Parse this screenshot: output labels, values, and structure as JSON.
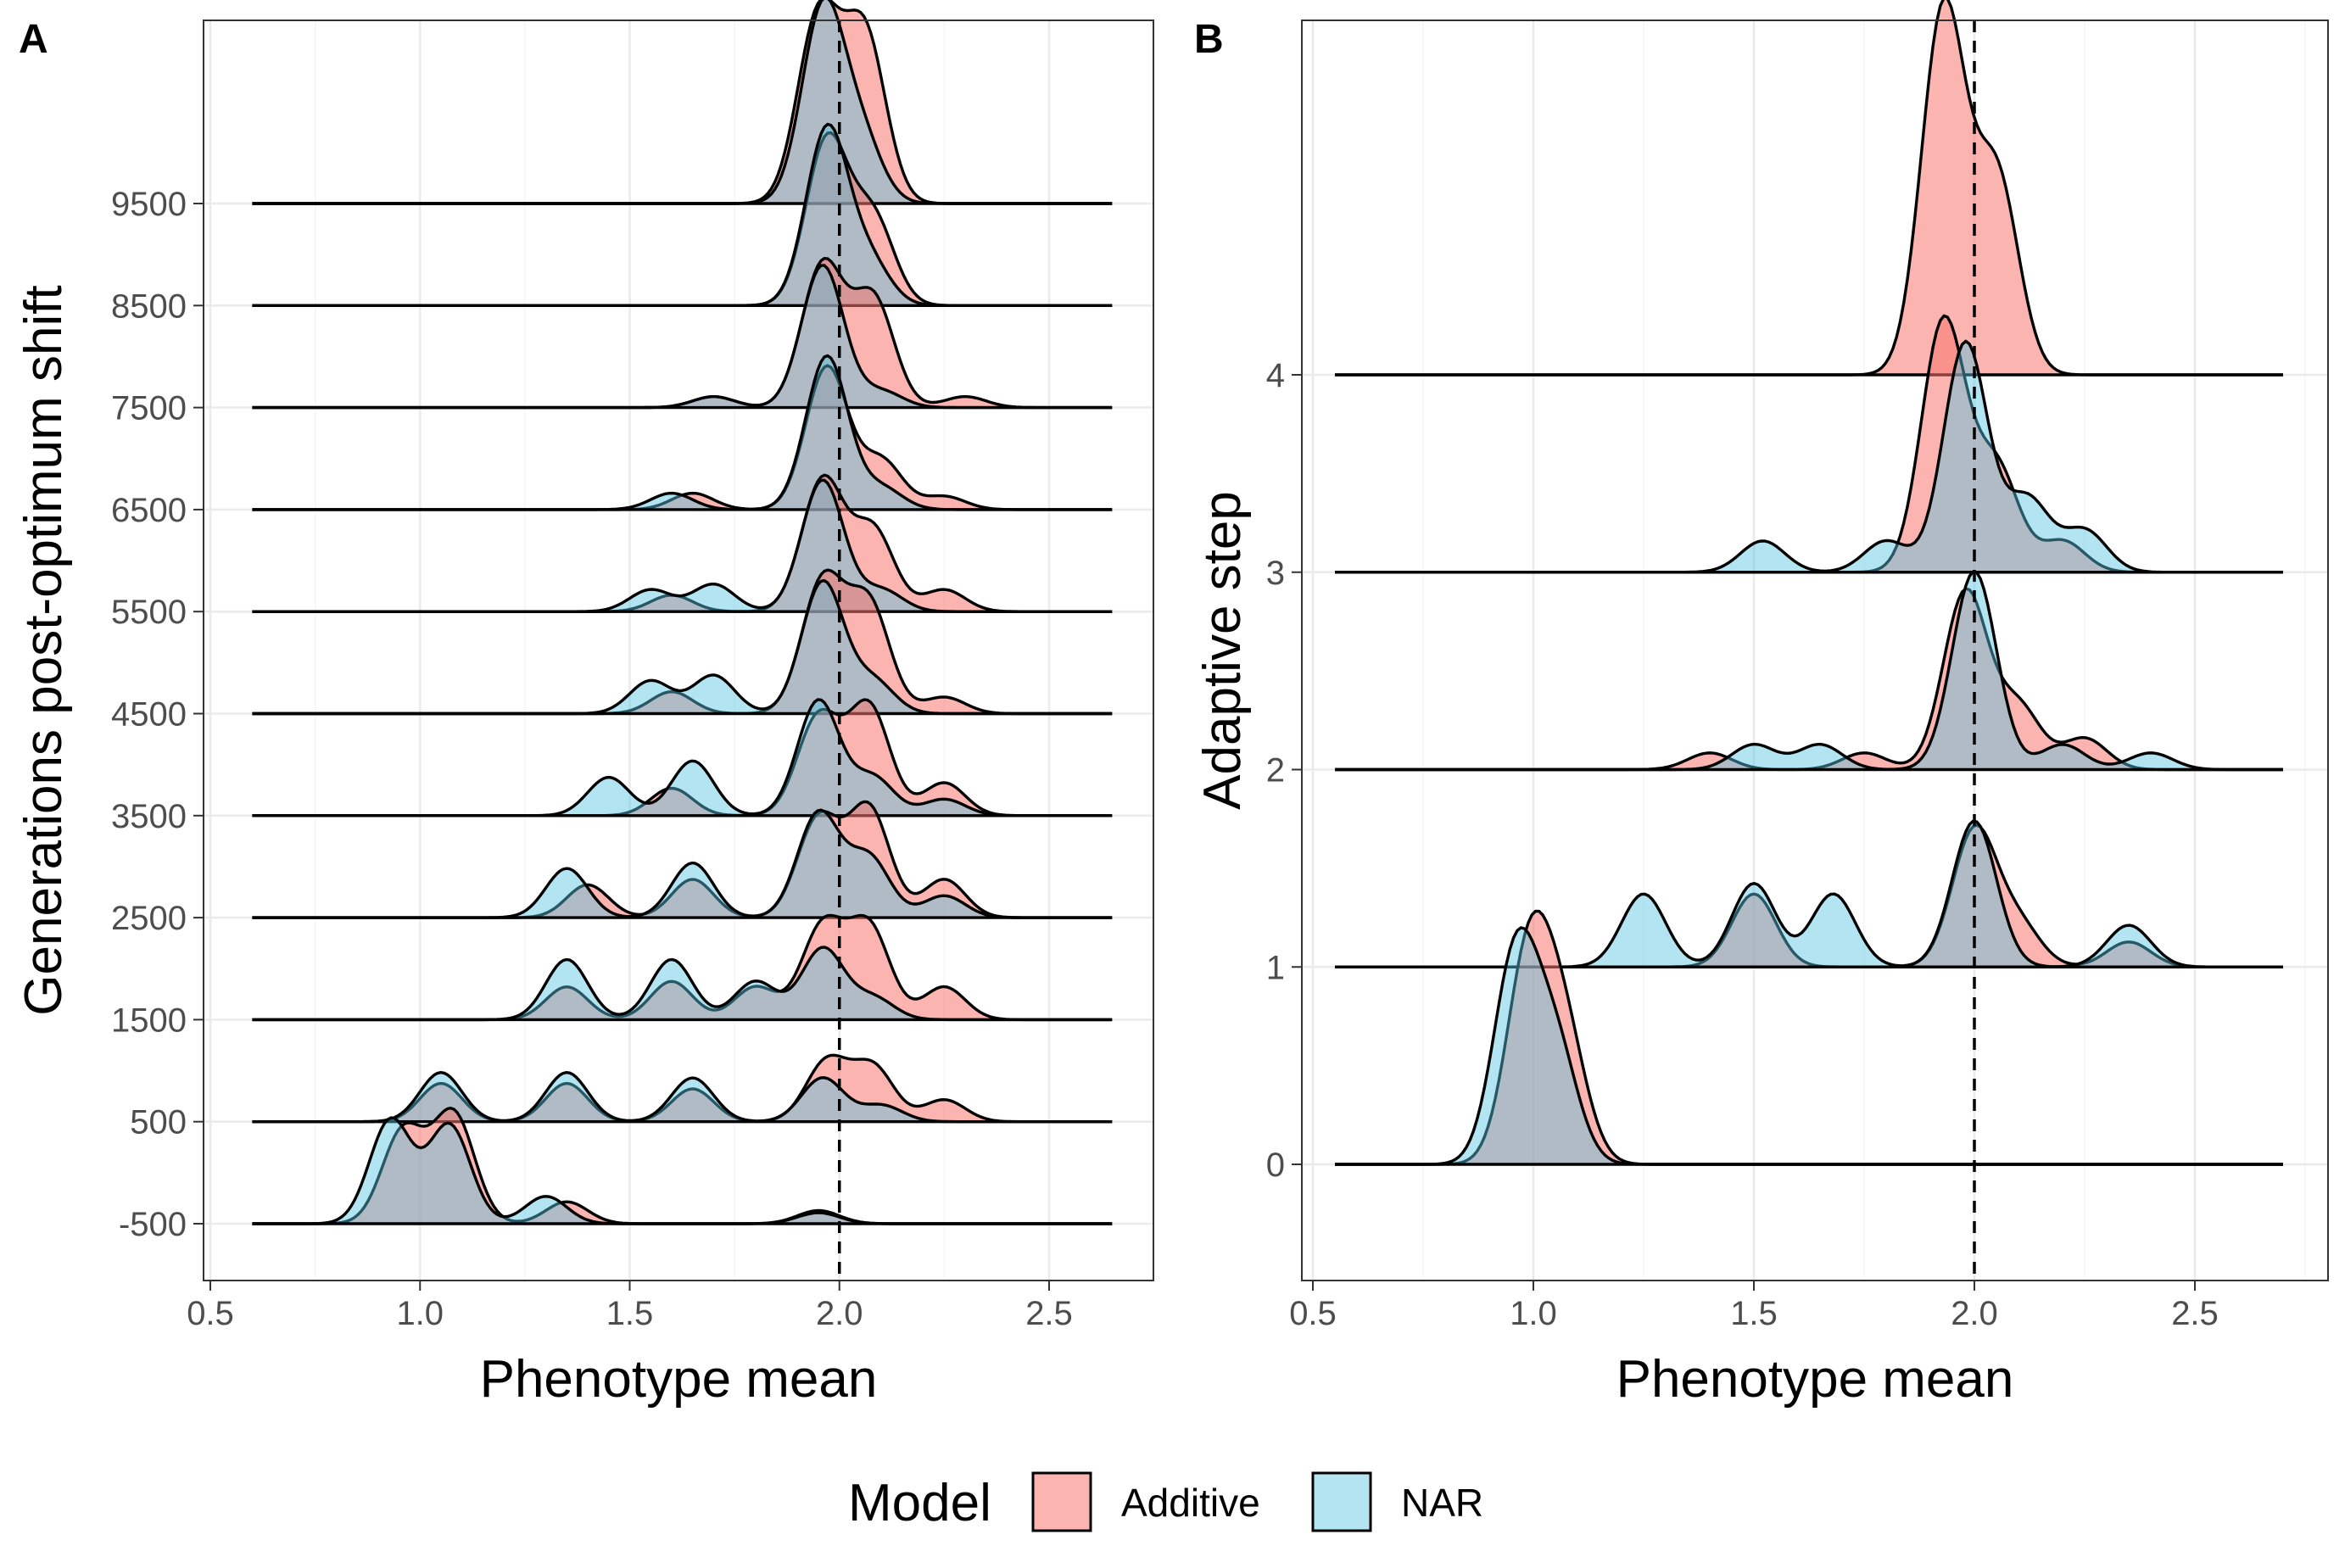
{
  "colors": {
    "additive": "#F8766D",
    "nar": "#56C4E0",
    "overlap": "#A9AFB2"
  },
  "legend": {
    "title": "Model",
    "items": [
      {
        "label": "Additive",
        "color_key": "additive"
      },
      {
        "label": "NAR",
        "color_key": "nar"
      }
    ]
  },
  "chart_data": [
    {
      "panel": "A",
      "type": "area",
      "subtype": "ridgeline-density",
      "xlabel": "Phenotype mean",
      "ylabel": "Generations post-optimum shift",
      "xlim": [
        0.5,
        2.75
      ],
      "x_ticks": [
        "0.5",
        "1.0",
        "1.5",
        "2.0",
        "2.5"
      ],
      "categories": [
        "-500",
        "500",
        "1500",
        "2500",
        "3500",
        "4500",
        "5500",
        "6500",
        "7500",
        "8500",
        "9500"
      ],
      "reference_line_x": 2.0,
      "grid": true,
      "series": [
        {
          "name": "Additive",
          "ridges": [
            {
              "category": "-500",
              "peaks": [
                [
                  1.08,
                  1.0
                ],
                [
                  0.96,
                  0.85
                ],
                [
                  1.35,
                  0.2
                ],
                [
                  1.95,
                  0.12
                ]
              ]
            },
            {
              "category": "500",
              "peaks": [
                [
                  1.05,
                  0.35
                ],
                [
                  1.35,
                  0.35
                ],
                [
                  1.65,
                  0.3
                ],
                [
                  1.97,
                  0.55
                ],
                [
                  2.08,
                  0.5
                ],
                [
                  2.25,
                  0.2
                ]
              ]
            },
            {
              "category": "1500",
              "peaks": [
                [
                  1.35,
                  0.3
                ],
                [
                  1.6,
                  0.35
                ],
                [
                  1.8,
                  0.3
                ],
                [
                  1.96,
                  0.85
                ],
                [
                  2.07,
                  0.85
                ],
                [
                  2.25,
                  0.3
                ]
              ]
            },
            {
              "category": "2500",
              "peaks": [
                [
                  1.4,
                  0.3
                ],
                [
                  1.65,
                  0.35
                ],
                [
                  1.95,
                  0.9
                ],
                [
                  2.07,
                  1.0
                ],
                [
                  2.25,
                  0.35
                ]
              ]
            },
            {
              "category": "3500",
              "peaks": [
                [
                  1.6,
                  0.25
                ],
                [
                  1.95,
                  0.9
                ],
                [
                  2.07,
                  1.0
                ],
                [
                  2.25,
                  0.3
                ]
              ]
            },
            {
              "category": "4500",
              "peaks": [
                [
                  1.6,
                  0.2
                ],
                [
                  1.96,
                  1.2
                ],
                [
                  2.07,
                  1.0
                ],
                [
                  2.25,
                  0.15
                ]
              ]
            },
            {
              "category": "5500",
              "peaks": [
                [
                  1.6,
                  0.15
                ],
                [
                  1.96,
                  1.2
                ],
                [
                  2.08,
                  0.75
                ],
                [
                  2.25,
                  0.2
                ]
              ]
            },
            {
              "category": "6500",
              "peaks": [
                [
                  1.65,
                  0.15
                ],
                [
                  1.97,
                  1.3
                ],
                [
                  2.1,
                  0.45
                ],
                [
                  2.25,
                  0.12
                ]
              ]
            },
            {
              "category": "7500",
              "peaks": [
                [
                  1.7,
                  0.1
                ],
                [
                  1.96,
                  1.3
                ],
                [
                  2.08,
                  1.0
                ],
                [
                  2.3,
                  0.1
                ]
              ]
            },
            {
              "category": "8500",
              "peaks": [
                [
                  1.97,
                  1.5
                ],
                [
                  2.08,
                  0.8
                ]
              ]
            },
            {
              "category": "9500",
              "peaks": [
                [
                  1.95,
                  1.7
                ],
                [
                  2.06,
                  1.55
                ]
              ]
            }
          ]
        },
        {
          "name": "NAR",
          "ridges": [
            {
              "category": "-500",
              "peaks": [
                [
                  0.93,
                  0.95
                ],
                [
                  1.07,
                  0.9
                ],
                [
                  1.3,
                  0.25
                ],
                [
                  1.95,
                  0.1
                ]
              ]
            },
            {
              "category": "500",
              "peaks": [
                [
                  1.05,
                  0.45
                ],
                [
                  1.35,
                  0.45
                ],
                [
                  1.65,
                  0.4
                ],
                [
                  1.96,
                  0.4
                ],
                [
                  2.1,
                  0.15
                ]
              ]
            },
            {
              "category": "1500",
              "peaks": [
                [
                  1.35,
                  0.55
                ],
                [
                  1.6,
                  0.55
                ],
                [
                  1.8,
                  0.35
                ],
                [
                  1.96,
                  0.65
                ],
                [
                  2.08,
                  0.2
                ]
              ]
            },
            {
              "category": "2500",
              "peaks": [
                [
                  1.35,
                  0.45
                ],
                [
                  1.65,
                  0.5
                ],
                [
                  1.95,
                  0.95
                ],
                [
                  2.07,
                  0.55
                ],
                [
                  2.25,
                  0.2
                ]
              ]
            },
            {
              "category": "3500",
              "peaks": [
                [
                  1.45,
                  0.35
                ],
                [
                  1.65,
                  0.5
                ],
                [
                  1.95,
                  1.05
                ],
                [
                  2.08,
                  0.35
                ],
                [
                  2.25,
                  0.15
                ]
              ]
            },
            {
              "category": "4500",
              "peaks": [
                [
                  1.55,
                  0.3
                ],
                [
                  1.7,
                  0.35
                ],
                [
                  1.96,
                  1.2
                ],
                [
                  2.08,
                  0.3
                ]
              ]
            },
            {
              "category": "5500",
              "peaks": [
                [
                  1.55,
                  0.2
                ],
                [
                  1.7,
                  0.25
                ],
                [
                  1.96,
                  1.2
                ],
                [
                  2.1,
                  0.2
                ]
              ]
            },
            {
              "category": "6500",
              "peaks": [
                [
                  1.6,
                  0.15
                ],
                [
                  1.97,
                  1.4
                ],
                [
                  2.1,
                  0.2
                ]
              ]
            },
            {
              "category": "7500",
              "peaks": [
                [
                  1.7,
                  0.1
                ],
                [
                  1.96,
                  1.3
                ],
                [
                  2.1,
                  0.15
                ]
              ]
            },
            {
              "category": "8500",
              "peaks": [
                [
                  1.97,
                  1.6
                ],
                [
                  2.07,
                  0.4
                ]
              ]
            },
            {
              "category": "9500",
              "peaks": [
                [
                  1.96,
                  1.75
                ],
                [
                  2.05,
                  0.6
                ]
              ]
            }
          ]
        }
      ]
    },
    {
      "panel": "B",
      "type": "area",
      "subtype": "ridgeline-density",
      "xlabel": "Phenotype mean",
      "ylabel": "Adaptive step",
      "xlim": [
        0.5,
        2.75
      ],
      "x_ticks": [
        "0.5",
        "1.0",
        "1.5",
        "2.0",
        "2.5"
      ],
      "categories": [
        "0",
        "1",
        "2",
        "3",
        "4"
      ],
      "reference_line_x": 2.0,
      "grid": true,
      "series": [
        {
          "name": "Additive",
          "ridges": [
            {
              "category": "0",
              "peaks": [
                [
                  0.99,
                  1.0
                ],
                [
                  1.07,
                  0.6
                ]
              ]
            },
            {
              "category": "1",
              "peaks": [
                [
                  1.5,
                  0.35
                ],
                [
                  2.0,
                  0.65
                ],
                [
                  2.1,
                  0.2
                ],
                [
                  2.35,
                  0.12
                ]
              ]
            },
            {
              "category": "2",
              "peaks": [
                [
                  1.4,
                  0.08
                ],
                [
                  1.75,
                  0.08
                ],
                [
                  1.98,
                  0.85
                ],
                [
                  2.1,
                  0.3
                ],
                [
                  2.25,
                  0.15
                ]
              ]
            },
            {
              "category": "3",
              "peaks": [
                [
                  1.93,
                  1.2
                ],
                [
                  2.05,
                  0.5
                ],
                [
                  2.2,
                  0.15
                ]
              ]
            },
            {
              "category": "4",
              "peaks": [
                [
                  1.93,
                  1.75
                ],
                [
                  2.05,
                  0.95
                ]
              ]
            }
          ]
        },
        {
          "name": "NAR",
          "ridges": [
            {
              "category": "0",
              "peaks": [
                [
                  0.96,
                  1.0
                ],
                [
                  1.05,
                  0.55
                ]
              ]
            },
            {
              "category": "1",
              "peaks": [
                [
                  1.25,
                  0.35
                ],
                [
                  1.5,
                  0.4
                ],
                [
                  1.68,
                  0.35
                ],
                [
                  2.0,
                  0.7
                ],
                [
                  2.35,
                  0.2
                ]
              ]
            },
            {
              "category": "2",
              "peaks": [
                [
                  1.5,
                  0.12
                ],
                [
                  1.65,
                  0.12
                ],
                [
                  2.0,
                  0.95
                ],
                [
                  2.2,
                  0.12
                ],
                [
                  2.4,
                  0.08
                ]
              ]
            },
            {
              "category": "3",
              "peaks": [
                [
                  1.52,
                  0.15
                ],
                [
                  1.8,
                  0.15
                ],
                [
                  1.98,
                  1.1
                ],
                [
                  2.12,
                  0.35
                ],
                [
                  2.25,
                  0.2
                ]
              ]
            }
          ]
        }
      ]
    }
  ]
}
